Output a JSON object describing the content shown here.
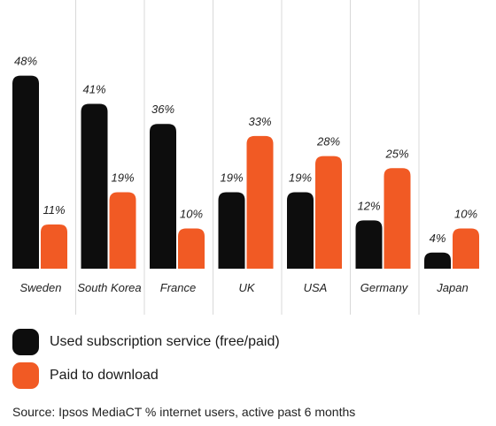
{
  "chart_data": {
    "type": "bar",
    "categories": [
      "Sweden",
      "South Korea",
      "France",
      "UK",
      "USA",
      "Germany",
      "Japan"
    ],
    "series": [
      {
        "name": "Used subscription service (free/paid)",
        "values": [
          48,
          41,
          36,
          19,
          19,
          12,
          4
        ],
        "labels": [
          "48%",
          "41%",
          "36%",
          "19%",
          "19%",
          "12%",
          "4%"
        ],
        "color": "#0d0d0d"
      },
      {
        "name": "Paid to download",
        "values": [
          11,
          19,
          10,
          33,
          28,
          25,
          10
        ],
        "labels": [
          "11%",
          "19%",
          "10%",
          "33%",
          "28%",
          "25%",
          "10%"
        ],
        "color": "#f15a24"
      }
    ],
    "ylim": [
      0,
      52
    ],
    "grid": "vertical separators",
    "legend_position": "bottom-left"
  },
  "legend": {
    "items": [
      {
        "label": "Used subscription service (free/paid)",
        "color": "#0d0d0d"
      },
      {
        "label": "Paid to download",
        "color": "#f15a24"
      }
    ]
  },
  "source": "Source: Ipsos MediaCT % internet users, active past 6 months"
}
